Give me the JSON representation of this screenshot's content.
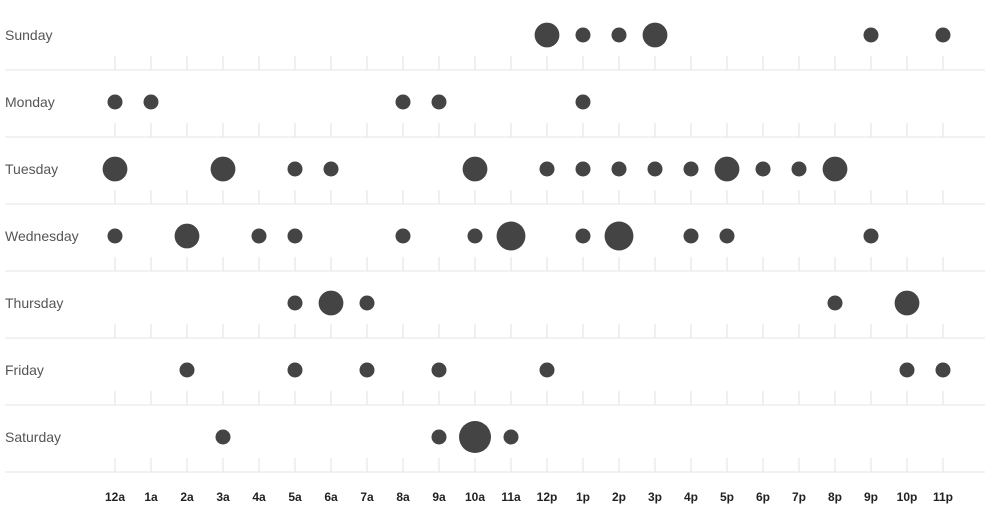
{
  "chart_data": {
    "type": "scatter",
    "title": "",
    "xlabel": "",
    "ylabel": "",
    "grid": false,
    "days": [
      "Sunday",
      "Monday",
      "Tuesday",
      "Wednesday",
      "Thursday",
      "Friday",
      "Saturday"
    ],
    "hours": [
      "12a",
      "1a",
      "2a",
      "3a",
      "4a",
      "5a",
      "6a",
      "7a",
      "8a",
      "9a",
      "10a",
      "11a",
      "12p",
      "1p",
      "2p",
      "3p",
      "4p",
      "5p",
      "6p",
      "7p",
      "8p",
      "9p",
      "10p",
      "11p"
    ],
    "points": [
      {
        "day": "Sunday",
        "hour": "12p",
        "value": 2
      },
      {
        "day": "Sunday",
        "hour": "1p",
        "value": 1
      },
      {
        "day": "Sunday",
        "hour": "2p",
        "value": 1
      },
      {
        "day": "Sunday",
        "hour": "3p",
        "value": 2
      },
      {
        "day": "Sunday",
        "hour": "9p",
        "value": 1
      },
      {
        "day": "Sunday",
        "hour": "11p",
        "value": 1
      },
      {
        "day": "Monday",
        "hour": "12a",
        "value": 1
      },
      {
        "day": "Monday",
        "hour": "1a",
        "value": 1
      },
      {
        "day": "Monday",
        "hour": "8a",
        "value": 1
      },
      {
        "day": "Monday",
        "hour": "9a",
        "value": 1
      },
      {
        "day": "Monday",
        "hour": "1p",
        "value": 1
      },
      {
        "day": "Tuesday",
        "hour": "12a",
        "value": 2
      },
      {
        "day": "Tuesday",
        "hour": "3a",
        "value": 2
      },
      {
        "day": "Tuesday",
        "hour": "5a",
        "value": 1
      },
      {
        "day": "Tuesday",
        "hour": "6a",
        "value": 1
      },
      {
        "day": "Tuesday",
        "hour": "10a",
        "value": 2
      },
      {
        "day": "Tuesday",
        "hour": "12p",
        "value": 1
      },
      {
        "day": "Tuesday",
        "hour": "1p",
        "value": 1
      },
      {
        "day": "Tuesday",
        "hour": "2p",
        "value": 1
      },
      {
        "day": "Tuesday",
        "hour": "3p",
        "value": 1
      },
      {
        "day": "Tuesday",
        "hour": "4p",
        "value": 1
      },
      {
        "day": "Tuesday",
        "hour": "5p",
        "value": 2
      },
      {
        "day": "Tuesday",
        "hour": "6p",
        "value": 1
      },
      {
        "day": "Tuesday",
        "hour": "7p",
        "value": 1
      },
      {
        "day": "Tuesday",
        "hour": "8p",
        "value": 2
      },
      {
        "day": "Wednesday",
        "hour": "12a",
        "value": 1
      },
      {
        "day": "Wednesday",
        "hour": "2a",
        "value": 2
      },
      {
        "day": "Wednesday",
        "hour": "4a",
        "value": 1
      },
      {
        "day": "Wednesday",
        "hour": "5a",
        "value": 1
      },
      {
        "day": "Wednesday",
        "hour": "8a",
        "value": 1
      },
      {
        "day": "Wednesday",
        "hour": "10a",
        "value": 1
      },
      {
        "day": "Wednesday",
        "hour": "11a",
        "value": 3
      },
      {
        "day": "Wednesday",
        "hour": "1p",
        "value": 1
      },
      {
        "day": "Wednesday",
        "hour": "2p",
        "value": 3
      },
      {
        "day": "Wednesday",
        "hour": "4p",
        "value": 1
      },
      {
        "day": "Wednesday",
        "hour": "5p",
        "value": 1
      },
      {
        "day": "Wednesday",
        "hour": "9p",
        "value": 1
      },
      {
        "day": "Thursday",
        "hour": "5a",
        "value": 1
      },
      {
        "day": "Thursday",
        "hour": "6a",
        "value": 2
      },
      {
        "day": "Thursday",
        "hour": "7a",
        "value": 1
      },
      {
        "day": "Thursday",
        "hour": "8p",
        "value": 1
      },
      {
        "day": "Thursday",
        "hour": "10p",
        "value": 2
      },
      {
        "day": "Friday",
        "hour": "2a",
        "value": 1
      },
      {
        "day": "Friday",
        "hour": "5a",
        "value": 1
      },
      {
        "day": "Friday",
        "hour": "7a",
        "value": 1
      },
      {
        "day": "Friday",
        "hour": "9a",
        "value": 1
      },
      {
        "day": "Friday",
        "hour": "12p",
        "value": 1
      },
      {
        "day": "Friday",
        "hour": "10p",
        "value": 1
      },
      {
        "day": "Friday",
        "hour": "11p",
        "value": 1
      },
      {
        "day": "Saturday",
        "hour": "3a",
        "value": 1
      },
      {
        "day": "Saturday",
        "hour": "9a",
        "value": 1
      },
      {
        "day": "Saturday",
        "hour": "10a",
        "value": 4
      },
      {
        "day": "Saturday",
        "hour": "11a",
        "value": 1
      }
    ]
  },
  "colors": {
    "dot": "#444444",
    "day_label": "#555555",
    "hour_label": "#222222",
    "grid_line": "#e6e6e6",
    "background": "#ffffff"
  }
}
